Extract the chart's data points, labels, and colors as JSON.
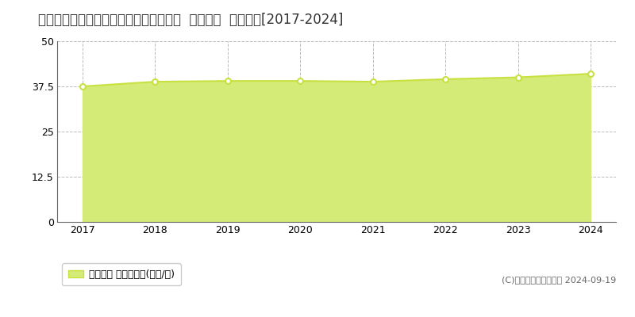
{
  "title": "愛知県愛知郡東郷町白鳥２丁目４番３外  公示地価  地価推移[2017-2024]",
  "years": [
    2017,
    2018,
    2019,
    2020,
    2021,
    2022,
    2023,
    2024
  ],
  "values": [
    37.5,
    38.8,
    39.0,
    39.0,
    38.8,
    39.5,
    40.0,
    41.0
  ],
  "line_color": "#c8e040",
  "fill_color": "#d4eb78",
  "marker_face": "#ffffff",
  "marker_edge": "#c8e040",
  "grid_color": "#bbbbbb",
  "bg_color": "#ffffff",
  "ylim": [
    0,
    50
  ],
  "yticks": [
    0,
    12.5,
    25,
    37.5,
    50
  ],
  "ytick_labels": [
    "0",
    "12.5",
    "25",
    "37.5",
    "50"
  ],
  "legend_label": "公示地価 平均坪単価(万円/坪)",
  "copyright": "(C)土地価格ドットコム 2024-09-19",
  "title_fontsize": 12,
  "axis_fontsize": 9,
  "legend_fontsize": 9,
  "xlim_left": 2016.65,
  "xlim_right": 2024.35
}
